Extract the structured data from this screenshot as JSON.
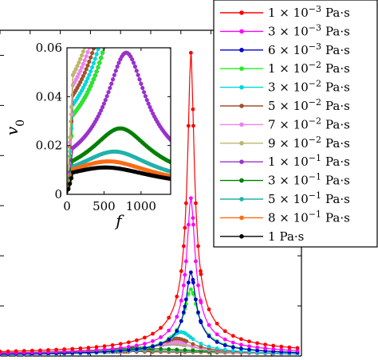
{
  "chart_data": [
    {
      "type": "line",
      "role": "main",
      "xlabel": "",
      "ylabel": "",
      "xlim": [
        0,
        1500
      ],
      "ylim": [
        0,
        0.065
      ],
      "x": [
        0,
        40,
        80,
        120,
        160,
        200,
        240,
        280,
        320,
        360,
        400,
        440,
        480,
        520,
        560,
        600,
        640,
        680,
        720,
        760,
        800,
        840,
        880,
        920,
        960,
        1000,
        1040,
        1080,
        1120,
        1160,
        1200,
        1240,
        1280,
        1320,
        1360,
        1400,
        1440,
        1480
      ],
      "series": [
        {
          "name": "1 × 10^-3 Pa·s",
          "color": "#ff0000",
          "peak_x": 950,
          "peak_y": 0.0605,
          "width": 14
        },
        {
          "name": "3 × 10^-3 Pa·s",
          "color": "#ff00ff",
          "peak_x": 950,
          "peak_y": 0.0315,
          "width": 18
        },
        {
          "name": "6 × 10^-3 Pa·s",
          "color": "#0000cc",
          "peak_x": 950,
          "peak_y": 0.0167,
          "width": 22
        },
        {
          "name": "1 × 10^-2 Pa·s",
          "color": "#22ee22",
          "peak_x": 950,
          "peak_y": 0.0133,
          "width": 30
        },
        {
          "name": "3 × 10^-2 Pa·s",
          "color": "#00d8d8",
          "peak_x": 900,
          "peak_y": 0.0048,
          "width": 60
        },
        {
          "name": "5 × 10^-2 Pa·s",
          "color": "#a0522d",
          "peak_x": 880,
          "peak_y": 0.0035,
          "width": 75
        },
        {
          "name": "7 × 10^-2 Pa·s",
          "color": "#ee82ee",
          "peak_x": 870,
          "peak_y": 0.0029,
          "width": 85
        },
        {
          "name": "9 × 10^-2 Pa·s",
          "color": "#bdb76b",
          "peak_x": 860,
          "peak_y": 0.0026,
          "width": 95
        },
        {
          "name": "1 × 10^-1 Pa·s",
          "color": "#9932cc",
          "peak_x": 860,
          "peak_y": 0.0025,
          "width": 100
        },
        {
          "name": "3 × 10^-1 Pa·s",
          "color": "#008000",
          "peak_x": 700,
          "peak_y": 0.0015,
          "width": 300
        },
        {
          "name": "5 × 10^-1 Pa·s",
          "color": "#20b2aa",
          "peak_x": 650,
          "peak_y": 0.0012,
          "width": 400
        },
        {
          "name": "8 × 10^-1 Pa·s",
          "color": "#ff6a13",
          "peak_x": 600,
          "peak_y": 0.001,
          "width": 500
        },
        {
          "name": "1 Pa·s",
          "color": "#000000",
          "peak_x": 580,
          "peak_y": 0.0009,
          "width": 600
        }
      ]
    },
    {
      "type": "line",
      "role": "inset",
      "xlabel": "f",
      "ylabel": "v0",
      "xlim": [
        0,
        1400
      ],
      "ylim": [
        0,
        0.06
      ],
      "xticks": [
        "0",
        "500",
        "1000"
      ],
      "yticks": [
        "0",
        "0.02",
        "0.04",
        "0.06"
      ],
      "series": [
        {
          "name": "1 × 10^-3 Pa·s",
          "peak_x": 950,
          "peak_y": 0.06
        },
        {
          "name": "3 × 10^-3 Pa·s",
          "peak_x": 950,
          "peak_y": 0.06
        },
        {
          "name": "6 × 10^-3 Pa·s",
          "peak_x": 950,
          "peak_y": 0.06
        },
        {
          "name": "1 × 10^-2 Pa·s",
          "peak_x": 950,
          "peak_y": 0.06
        },
        {
          "name": "3 × 10^-2 Pa·s",
          "peak_x": 920,
          "peak_y": 0.06
        },
        {
          "name": "5 × 10^-2 Pa·s",
          "peak_x": 900,
          "peak_y": 0.06
        },
        {
          "name": "7 × 10^-2 Pa·s",
          "peak_x": 880,
          "peak_y": 0.06
        },
        {
          "name": "9 × 10^-2 Pa·s",
          "peak_x": 860,
          "peak_y": 0.06
        },
        {
          "name": "1 × 10^-1 Pa·s",
          "peak_x": 800,
          "peak_y": 0.058
        },
        {
          "name": "3 × 10^-1 Pa·s",
          "peak_x": 720,
          "peak_y": 0.027
        },
        {
          "name": "5 × 10^-1 Pa·s",
          "peak_x": 640,
          "peak_y": 0.0175
        },
        {
          "name": "8 × 10^-1 Pa·s",
          "peak_x": 560,
          "peak_y": 0.0135
        },
        {
          "name": "1 Pa·s",
          "peak_x": 520,
          "peak_y": 0.011
        }
      ]
    }
  ],
  "legend": {
    "placement": "top-right",
    "entries": [
      {
        "mantissa": "1",
        "exp": "−3",
        "unit": "Pa·s",
        "color": "#ff0000"
      },
      {
        "mantissa": "3",
        "exp": "−3",
        "unit": "Pa·s",
        "color": "#ff00ff"
      },
      {
        "mantissa": "6",
        "exp": "−3",
        "unit": "Pa·s",
        "color": "#0000cc"
      },
      {
        "mantissa": "1",
        "exp": "−2",
        "unit": "Pa·s",
        "color": "#22ee22"
      },
      {
        "mantissa": "3",
        "exp": "−2",
        "unit": "Pa·s",
        "color": "#00d8d8"
      },
      {
        "mantissa": "5",
        "exp": "−2",
        "unit": "Pa·s",
        "color": "#a0522d"
      },
      {
        "mantissa": "7",
        "exp": "−2",
        "unit": "Pa·s",
        "color": "#ee82ee"
      },
      {
        "mantissa": "9",
        "exp": "−2",
        "unit": "Pa·s",
        "color": "#bdb76b"
      },
      {
        "mantissa": "1",
        "exp": "−1",
        "unit": "Pa·s",
        "color": "#9932cc"
      },
      {
        "mantissa": "3",
        "exp": "−1",
        "unit": "Pa·s",
        "color": "#008000"
      },
      {
        "mantissa": "5",
        "exp": "−1",
        "unit": "Pa·s",
        "color": "#20b2aa"
      },
      {
        "mantissa": "8",
        "exp": "−1",
        "unit": "Pa·s",
        "color": "#ff6a13"
      },
      {
        "mantissa": "1",
        "exp": "",
        "unit": "Pa·s",
        "color": "#000000"
      }
    ]
  }
}
